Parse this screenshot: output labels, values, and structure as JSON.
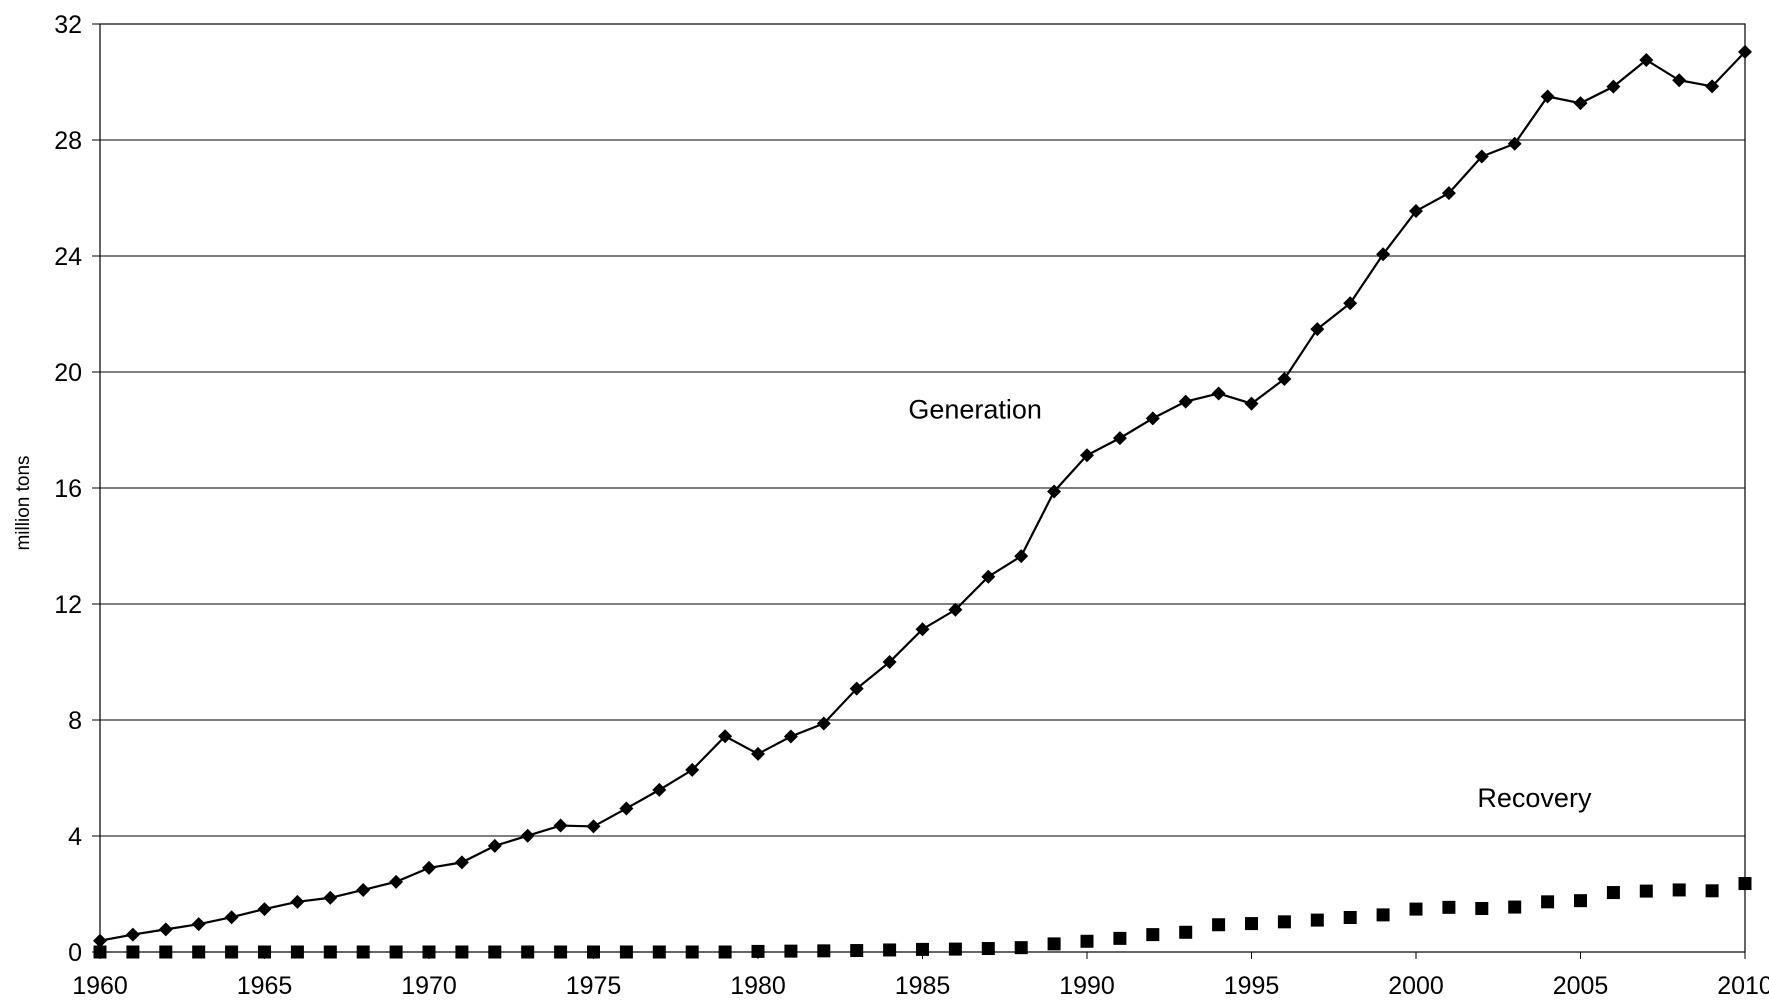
{
  "chart_data": {
    "type": "line",
    "title": "",
    "xlabel": "",
    "ylabel": "million tons",
    "xlim": [
      1960,
      2010
    ],
    "ylim": [
      0,
      32
    ],
    "x_ticks": [
      1960,
      1965,
      1970,
      1975,
      1980,
      1985,
      1990,
      1995,
      2000,
      2005,
      2010
    ],
    "y_ticks": [
      0,
      4,
      8,
      12,
      16,
      20,
      24,
      28,
      32
    ],
    "grid": "horizontal",
    "legend": "none",
    "x": [
      1960,
      1961,
      1962,
      1963,
      1964,
      1965,
      1966,
      1967,
      1968,
      1969,
      1970,
      1971,
      1972,
      1973,
      1974,
      1975,
      1976,
      1977,
      1978,
      1979,
      1980,
      1981,
      1982,
      1983,
      1984,
      1985,
      1986,
      1987,
      1988,
      1989,
      1990,
      1991,
      1992,
      1993,
      1994,
      1995,
      1996,
      1997,
      1998,
      1999,
      2000,
      2001,
      2002,
      2003,
      2004,
      2005,
      2006,
      2007,
      2008,
      2009,
      2010
    ],
    "series": [
      {
        "name": "Generation",
        "marker": "diamond",
        "line": true,
        "color": "#000000",
        "values": [
          0.39,
          0.6,
          0.78,
          0.96,
          1.2,
          1.48,
          1.73,
          1.87,
          2.14,
          2.42,
          2.9,
          3.09,
          3.66,
          4.01,
          4.36,
          4.33,
          4.95,
          5.59,
          6.28,
          7.44,
          6.83,
          7.43,
          7.88,
          9.08,
          10.0,
          11.13,
          11.8,
          12.94,
          13.65,
          15.88,
          17.13,
          17.72,
          18.4,
          18.98,
          19.26,
          18.91,
          19.76,
          21.48,
          22.37,
          24.06,
          25.55,
          26.17,
          27.43,
          27.87,
          29.5,
          29.27,
          29.84,
          30.76,
          30.06,
          29.85,
          31.04
        ]
      },
      {
        "name": "Recovery",
        "marker": "square",
        "line": false,
        "color": "#000000",
        "values": [
          0.0,
          0.0,
          0.0,
          0.0,
          0.0,
          0.0,
          0.0,
          0.0,
          0.0,
          0.0,
          0.0,
          0.0,
          0.0,
          0.0,
          0.0,
          0.0,
          0.0,
          0.0,
          0.0,
          0.0,
          0.02,
          0.03,
          0.04,
          0.05,
          0.07,
          0.09,
          0.1,
          0.12,
          0.15,
          0.28,
          0.37,
          0.47,
          0.6,
          0.68,
          0.94,
          0.98,
          1.04,
          1.1,
          1.19,
          1.28,
          1.48,
          1.54,
          1.5,
          1.55,
          1.73,
          1.77,
          2.05,
          2.1,
          2.14,
          2.11,
          2.36
        ]
      }
    ],
    "annotations": [
      {
        "text": "Generation",
        "series": "Generation",
        "x": 1986.6,
        "y": 18.4
      },
      {
        "text": "Recovery",
        "series": "Recovery",
        "x": 2003.6,
        "y": 5.0
      }
    ]
  }
}
